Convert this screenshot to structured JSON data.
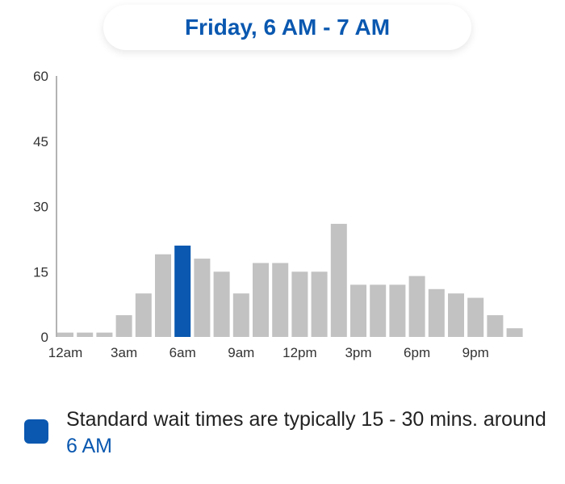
{
  "header": {
    "title": "Friday, 6 AM - 7 AM"
  },
  "colors": {
    "accent": "#0a58b0",
    "bar": "#c2c2c2",
    "axis": "#9a9a9a",
    "tick_text": "#333333"
  },
  "chart_data": {
    "type": "bar",
    "title": "",
    "xlabel": "",
    "ylabel": "",
    "ylim": [
      0,
      60
    ],
    "y_ticks": [
      "0",
      "15",
      "30",
      "45",
      "60"
    ],
    "x_tick_labels": [
      {
        "label": "12am",
        "index": 0
      },
      {
        "label": "3am",
        "index": 3
      },
      {
        "label": "6am",
        "index": 6
      },
      {
        "label": "9am",
        "index": 9
      },
      {
        "label": "12pm",
        "index": 12
      },
      {
        "label": "3pm",
        "index": 15
      },
      {
        "label": "6pm",
        "index": 18
      },
      {
        "label": "9pm",
        "index": 21
      }
    ],
    "categories": [
      "12am",
      "1am",
      "2am",
      "3am",
      "4am",
      "5am",
      "6am",
      "7am",
      "8am",
      "9am",
      "10am",
      "11am",
      "12pm",
      "1pm",
      "2pm",
      "3pm",
      "4pm",
      "5pm",
      "6pm",
      "7pm",
      "8pm",
      "9pm",
      "10pm",
      "11pm"
    ],
    "values": [
      1,
      1,
      1,
      5,
      10,
      19,
      21,
      18,
      15,
      10,
      17,
      17,
      15,
      15,
      26,
      12,
      12,
      12,
      14,
      11,
      10,
      9,
      5,
      2
    ],
    "highlight_index": 6,
    "grid": false
  },
  "legend": {
    "text": "Standard wait times are typically 15 - 30 mins. around ",
    "highlight": "6 AM"
  }
}
